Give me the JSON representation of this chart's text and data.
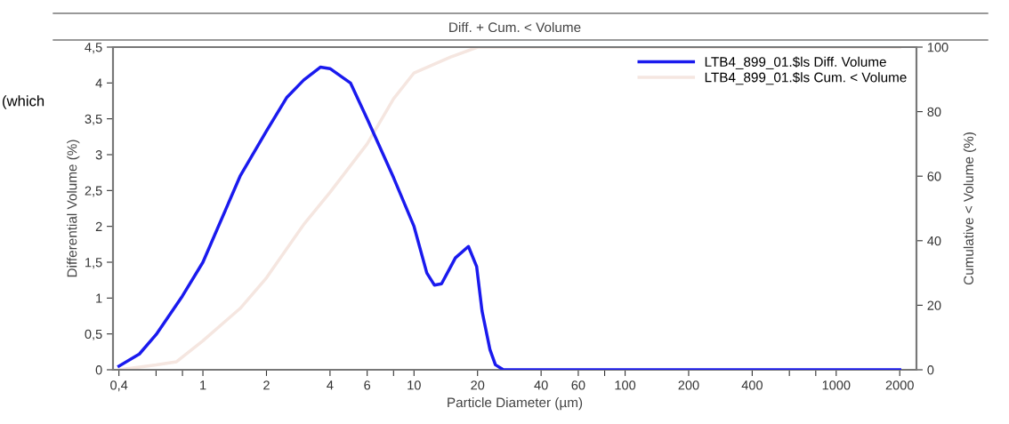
{
  "chart_data": {
    "type": "line",
    "title": "Diff. + Cum. < Volume",
    "xlabel": "Particle Diameter (µm)",
    "ylabel": "Differential Volume (%)",
    "y2label": "Cumulative < Volume (%)",
    "annotations": [
      "(which"
    ],
    "log": "x",
    "grid": false,
    "legend": "top right",
    "marker": "none",
    "line_style": "solid",
    "xlim": [
      0.375,
      2400
    ],
    "xticks": [
      {
        "value": 0.4,
        "label": "0,4"
      },
      {
        "value": 0.6,
        "label": null
      },
      {
        "value": 0.8,
        "label": null
      },
      1,
      2,
      4,
      6,
      {
        "value": 8,
        "label": null
      },
      10,
      20,
      40,
      60,
      {
        "value": 80,
        "label": null
      },
      100,
      200,
      400,
      {
        "value": 600,
        "label": null
      },
      {
        "value": 800,
        "label": null
      },
      1000,
      2000
    ],
    "ylim": [
      0,
      4.5
    ],
    "yticks": [
      0,
      {
        "value": 0.5,
        "label": "0,5"
      },
      1,
      {
        "value": 1.5,
        "label": "1,5"
      },
      2,
      {
        "value": 2.5,
        "label": "2,5"
      },
      3,
      {
        "value": 3.5,
        "label": "3,5"
      },
      4,
      {
        "value": 4.5,
        "label": "4,5"
      }
    ],
    "y2lim": [
      0,
      100
    ],
    "y2ticks": [
      0,
      20,
      40,
      60,
      80,
      100
    ],
    "series": [
      {
        "name": "LTB4_899_01.$ls Diff. Volume",
        "color": "#1a1aee",
        "x": [
          0.4,
          0.5,
          0.6,
          0.8,
          1,
          1.5,
          2,
          2.5,
          3,
          3.6,
          4,
          5,
          6,
          8,
          10,
          11.5,
          12.5,
          13.5,
          15.7,
          18.1,
          19.8,
          21,
          22.9,
          24.3,
          26.5,
          40,
          100,
          400,
          1000,
          2000
        ],
        "values": [
          0.05,
          0.22,
          0.49,
          1.03,
          1.5,
          2.7,
          3.33,
          3.8,
          4.04,
          4.22,
          4.2,
          4.0,
          3.5,
          2.68,
          2.0,
          1.35,
          1.18,
          1.2,
          1.56,
          1.72,
          1.44,
          0.82,
          0.28,
          0.07,
          0,
          0,
          0,
          0,
          0,
          0
        ]
      },
      {
        "name": "LTB4_899_01.$ls Cum. < Volume",
        "color": "#f5e6e0",
        "axis": "y2",
        "x": [
          0.4,
          0.5,
          0.6,
          0.75,
          1,
          1.5,
          2,
          3,
          4,
          6,
          8,
          10,
          15,
          20,
          25,
          100,
          1000,
          2000
        ],
        "values": [
          0,
          0.8,
          1.5,
          2.5,
          9,
          19,
          28.5,
          45,
          55,
          70,
          84,
          92,
          97,
          100,
          100,
          100,
          100,
          100
        ]
      }
    ]
  }
}
